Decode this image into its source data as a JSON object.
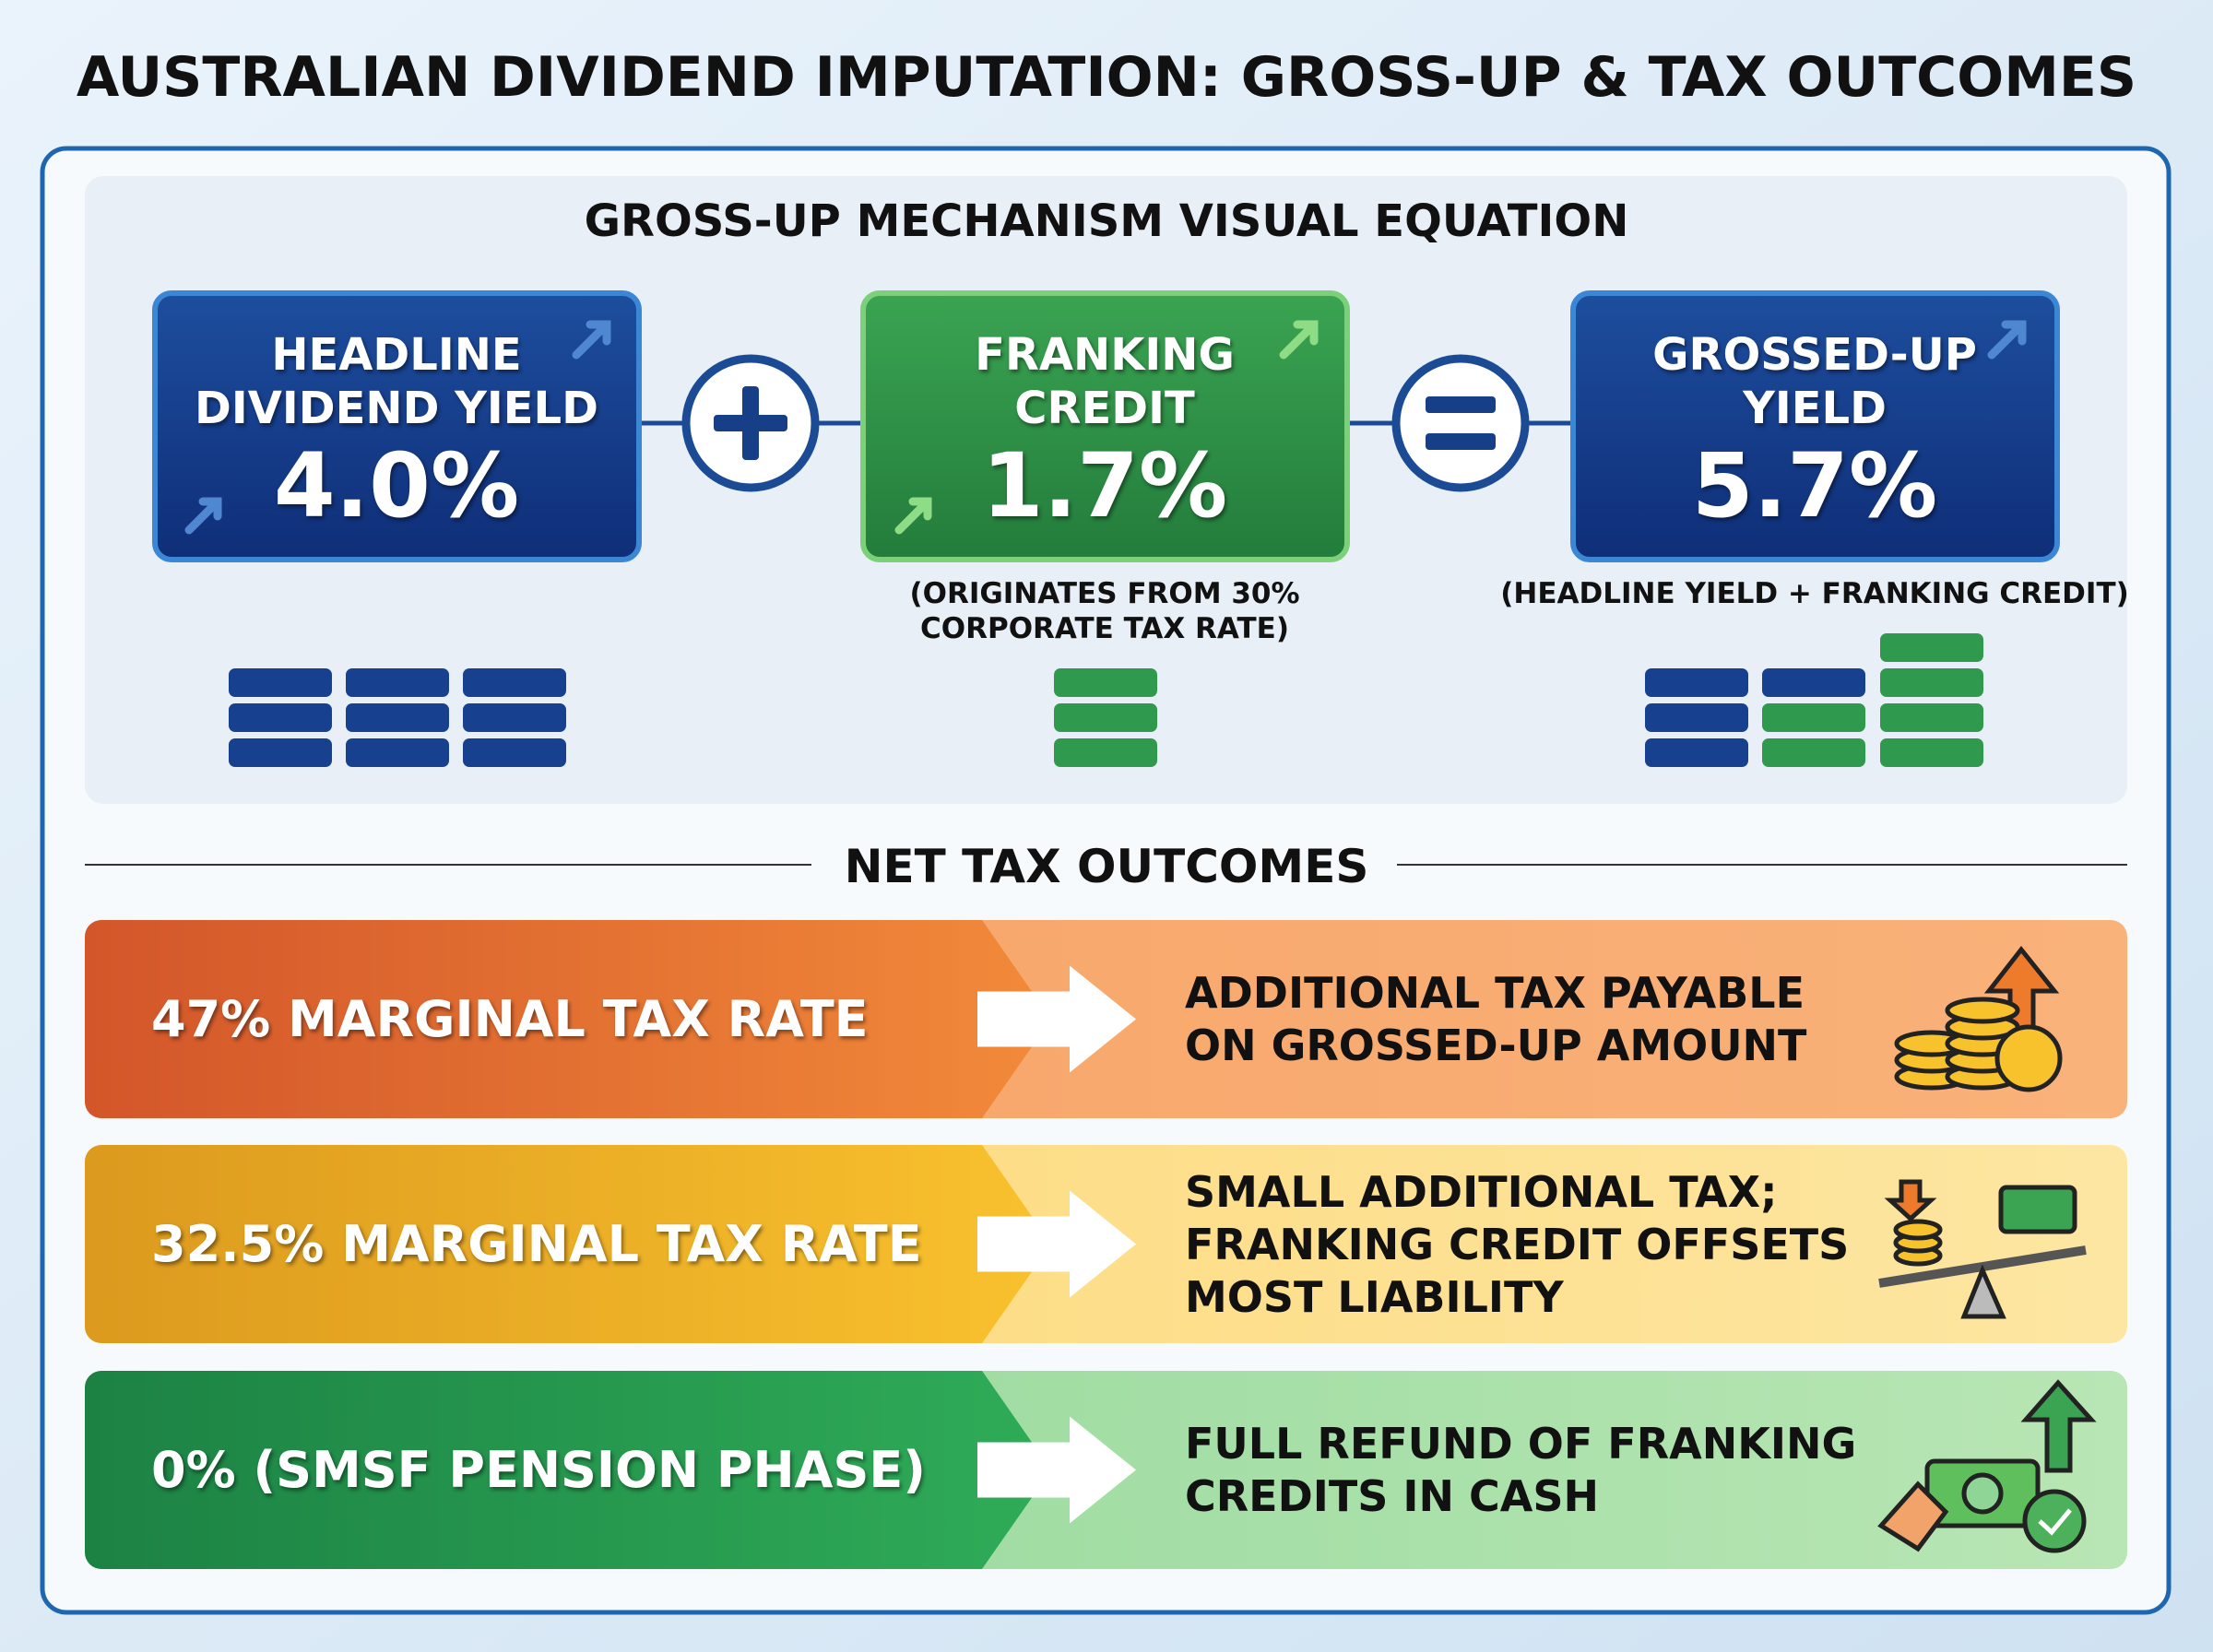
{
  "title": "AUSTRALIAN DIVIDEND IMPUTATION: GROSS-UP & TAX OUTCOMES",
  "equation": {
    "title": "GROSS-UP MECHANISM VISUAL EQUATION",
    "boxes": [
      {
        "label_lines": [
          "HEADLINE",
          "DIVIDEND YIELD"
        ],
        "value": "4.0%"
      },
      {
        "label_lines": [
          "FRANKING",
          "CREDIT"
        ],
        "value": "1.7%",
        "note_lines": [
          "(ORIGINATES FROM 30%",
          "CORPORATE TAX RATE)"
        ]
      },
      {
        "label_lines": [
          "GROSSED-UP",
          "YIELD"
        ],
        "value": "5.7%",
        "note_lines": [
          "(HEADLINE YIELD + FRANKING CREDIT)"
        ]
      }
    ]
  },
  "outcomes": {
    "title": "NET TAX OUTCOMES",
    "rows": [
      {
        "rate": "47% MARGINAL TAX RATE",
        "result_lines": [
          "ADDITIONAL TAX PAYABLE",
          "ON GROSSED-UP AMOUNT"
        ]
      },
      {
        "rate": "32.5% MARGINAL TAX RATE",
        "result_lines": [
          "SMALL ADDITIONAL TAX;",
          "FRANKING CREDIT OFFSETS",
          "MOST LIABILITY"
        ]
      },
      {
        "rate": "0% (SMSF PENSION PHASE)",
        "result_lines": [
          "FULL REFUND OF FRANKING",
          "CREDITS IN CASH"
        ]
      }
    ]
  }
}
